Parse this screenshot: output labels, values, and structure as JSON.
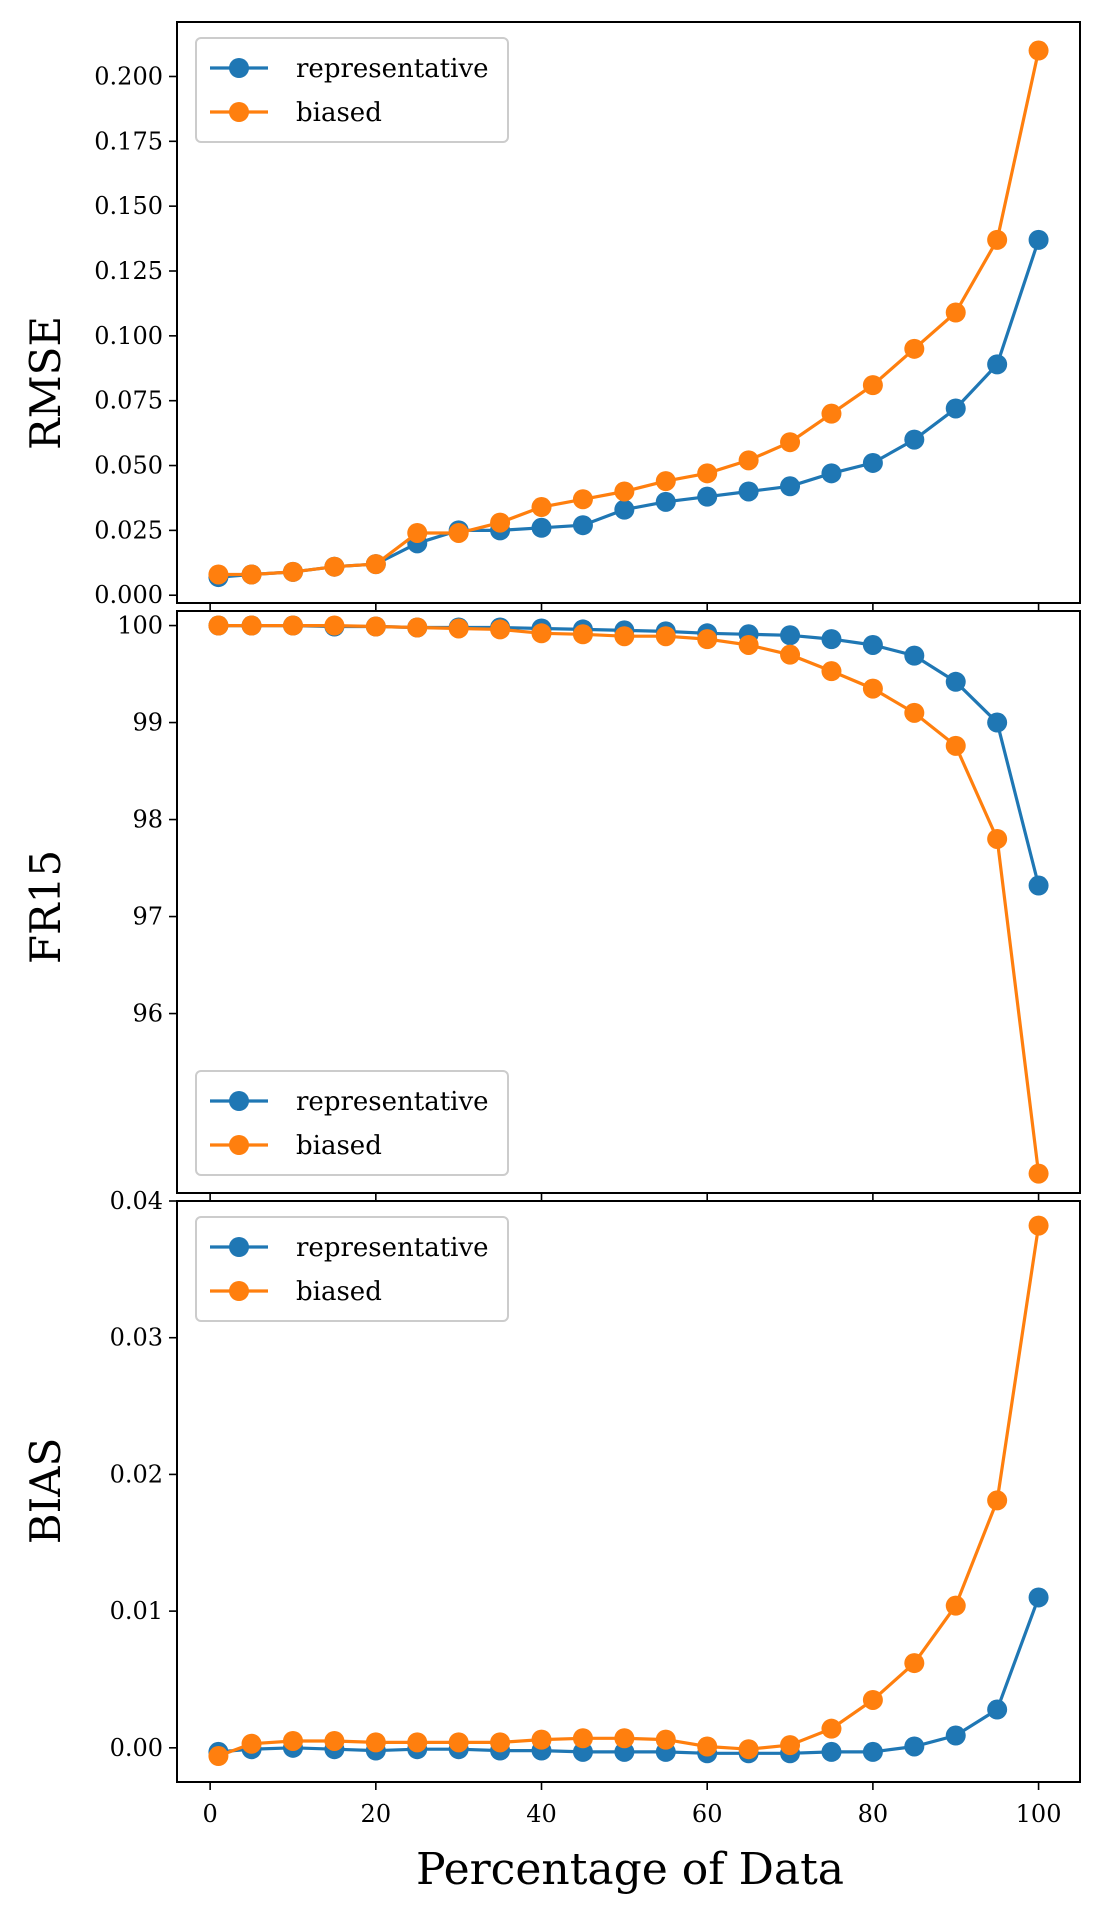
{
  "chart_data": [
    {
      "type": "line",
      "ylabel": "RMSE",
      "ylim": [
        -0.003,
        0.221
      ],
      "yticks": [
        0.0,
        0.025,
        0.05,
        0.075,
        0.1,
        0.125,
        0.15,
        0.175,
        0.2
      ],
      "ytick_labels": [
        "0.000",
        "0.025",
        "0.050",
        "0.075",
        "0.100",
        "0.125",
        "0.150",
        "0.175",
        "0.200"
      ],
      "legend_position": "top-left",
      "x": [
        1,
        5,
        10,
        15,
        20,
        25,
        30,
        35,
        40,
        45,
        50,
        55,
        60,
        65,
        70,
        75,
        80,
        85,
        90,
        95,
        100
      ],
      "series": [
        {
          "name": "representative",
          "color": "#1f77b4",
          "values": [
            0.007,
            0.008,
            0.009,
            0.011,
            0.012,
            0.02,
            0.025,
            0.025,
            0.026,
            0.027,
            0.033,
            0.036,
            0.038,
            0.04,
            0.042,
            0.047,
            0.051,
            0.06,
            0.072,
            0.089,
            0.137
          ]
        },
        {
          "name": "biased",
          "color": "#ff7f0e",
          "values": [
            0.008,
            0.008,
            0.009,
            0.011,
            0.012,
            0.024,
            0.024,
            0.028,
            0.034,
            0.037,
            0.04,
            0.044,
            0.047,
            0.052,
            0.059,
            0.07,
            0.081,
            0.095,
            0.109,
            0.137,
            0.21
          ]
        }
      ]
    },
    {
      "type": "line",
      "ylabel": "FR15",
      "ylim": [
        94.15,
        100.15
      ],
      "yticks": [
        96,
        97,
        98,
        99,
        100
      ],
      "ytick_labels": [
        "96",
        "97",
        "98",
        "99",
        "100"
      ],
      "legend_position": "bottom-left",
      "x": [
        1,
        5,
        10,
        15,
        20,
        25,
        30,
        35,
        40,
        45,
        50,
        55,
        60,
        65,
        70,
        75,
        80,
        85,
        90,
        95,
        100
      ],
      "series": [
        {
          "name": "representative",
          "color": "#1f77b4",
          "values": [
            100.0,
            100.0,
            100.0,
            99.99,
            99.99,
            99.98,
            99.98,
            99.98,
            99.97,
            99.96,
            99.95,
            99.94,
            99.92,
            99.91,
            99.9,
            99.86,
            99.8,
            99.69,
            99.42,
            99.0,
            97.32
          ]
        },
        {
          "name": "biased",
          "color": "#ff7f0e",
          "values": [
            100.0,
            100.0,
            100.0,
            100.0,
            99.99,
            99.98,
            99.97,
            99.96,
            99.92,
            99.91,
            99.89,
            99.89,
            99.86,
            99.8,
            99.7,
            99.53,
            99.35,
            99.1,
            98.76,
            97.8,
            94.35
          ]
        }
      ]
    },
    {
      "type": "line",
      "ylabel": "BIAS",
      "xlabel": "Percentage of Data",
      "ylim": [
        -0.0025,
        0.04
      ],
      "yticks": [
        0.0,
        0.01,
        0.02,
        0.03,
        0.04
      ],
      "ytick_labels": [
        "0.00",
        "0.01",
        "0.02",
        "0.03",
        "0.04"
      ],
      "xticks": [
        0,
        20,
        40,
        60,
        80,
        100
      ],
      "xtick_labels": [
        "0",
        "20",
        "40",
        "60",
        "80",
        "100"
      ],
      "legend_position": "top-left",
      "x": [
        1,
        5,
        10,
        15,
        20,
        25,
        30,
        35,
        40,
        45,
        50,
        55,
        60,
        65,
        70,
        75,
        80,
        85,
        90,
        95,
        100
      ],
      "series": [
        {
          "name": "representative",
          "color": "#1f77b4",
          "values": [
            -0.0003,
            -0.0001,
            0.0,
            -0.0001,
            -0.0002,
            -0.0001,
            -0.0001,
            -0.0002,
            -0.0002,
            -0.0003,
            -0.0003,
            -0.0003,
            -0.0004,
            -0.0004,
            -0.0004,
            -0.0003,
            -0.0003,
            0.0001,
            0.0009,
            0.0028,
            0.011
          ]
        },
        {
          "name": "biased",
          "color": "#ff7f0e",
          "values": [
            -0.0006,
            0.0003,
            0.0005,
            0.0005,
            0.0004,
            0.0004,
            0.0004,
            0.0004,
            0.0006,
            0.0007,
            0.0007,
            0.0006,
            0.0001,
            -0.0001,
            0.0002,
            0.0014,
            0.0035,
            0.0062,
            0.0104,
            0.0181,
            0.0382
          ]
        }
      ]
    }
  ],
  "legend": {
    "labels": [
      "representative",
      "biased"
    ]
  }
}
